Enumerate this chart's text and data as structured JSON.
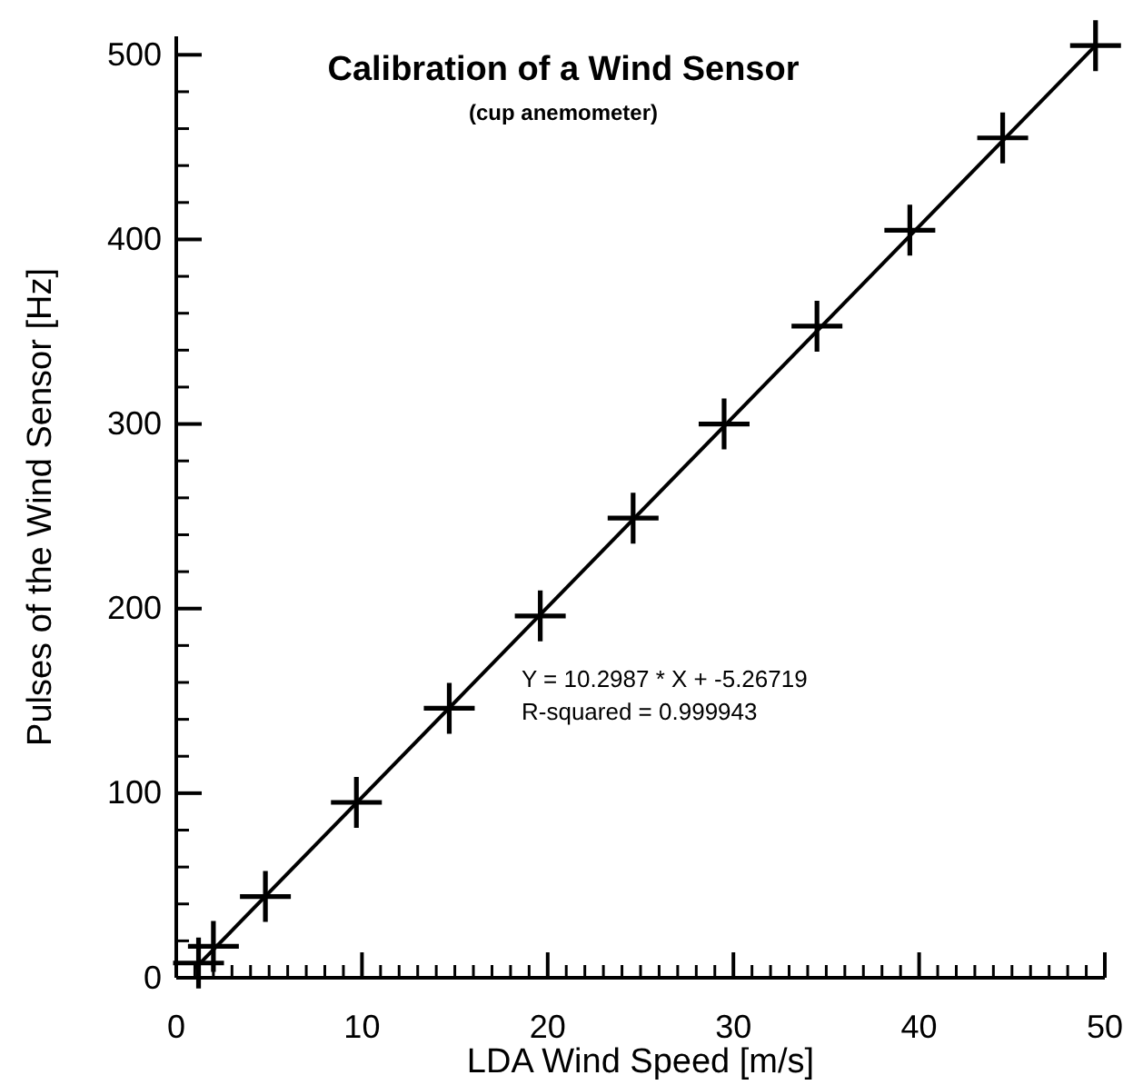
{
  "chart_data": {
    "type": "scatter",
    "title": "Calibration of a Wind Sensor",
    "subtitle": "(cup anemometer)",
    "xlabel": "LDA Wind Speed [m/s]",
    "ylabel": "Pulses of the Wind Sensor [Hz]",
    "annotations": [
      "Y = 10.2987 * X + -5.26719",
      "R-squared = 0.999943"
    ],
    "series": [
      {
        "marker": "cross",
        "color": "#000000",
        "x": [
          1.2,
          2,
          4.8,
          9.7,
          14.7,
          19.6,
          24.6,
          29.5,
          34.5,
          39.5,
          44.5,
          49.5
        ],
        "values": [
          8,
          17,
          44,
          95,
          146,
          196,
          249,
          300,
          353,
          405,
          455,
          505
        ]
      },
      {
        "type": "line",
        "color": "#000000",
        "x": [
          1,
          49.5
        ],
        "values": [
          5,
          505
        ]
      }
    ],
    "line_style": "solid",
    "grid": false,
    "xlim": [
      0,
      50
    ],
    "ylim": [
      0,
      510
    ],
    "xticks": [
      0,
      10,
      20,
      30,
      40,
      50
    ],
    "yticks": [
      0,
      100,
      200,
      300,
      400,
      500
    ]
  }
}
